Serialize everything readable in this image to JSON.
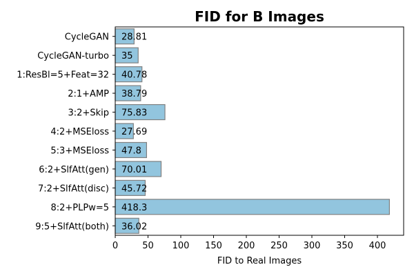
{
  "chart_data": {
    "type": "bar",
    "orientation": "horizontal",
    "title": "FID for B Images",
    "xlabel": "FID to Real Images",
    "ylabel": "",
    "xlim": [
      0,
      440
    ],
    "xticks": [
      0,
      50,
      100,
      150,
      200,
      250,
      300,
      350,
      400
    ],
    "categories": [
      "CycleGAN",
      "CycleGAN-turbo",
      "1:ResBl=5+Feat=32",
      "2:1+AMP",
      "3:2+Skip",
      "4:2+MSEloss",
      "5:3+MSEloss",
      "6:2+SlfAtt(gen)",
      "7:2+SlfAtt(disc)",
      "8:2+PLPw=5",
      "9:5+SlfAtt(both)"
    ],
    "values": [
      28.81,
      35,
      40.78,
      38.79,
      75.83,
      27.69,
      47.8,
      70.01,
      45.72,
      418.3,
      36.02
    ],
    "value_labels": [
      "28.81",
      "35",
      "40.78",
      "38.79",
      "75.83",
      "27.69",
      "47.8",
      "70.01",
      "45.72",
      "418.3",
      "36.02"
    ],
    "bar_color": "#92c5de",
    "bar_edge_color": "#808080",
    "grid": false
  }
}
